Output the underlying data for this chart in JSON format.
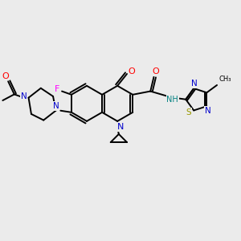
{
  "background_color": "#ebebeb",
  "bond_color": "#000000",
  "atom_colors": {
    "N": "#0000cc",
    "O": "#ff0000",
    "F": "#ff00ff",
    "S": "#999900",
    "NH": "#008080",
    "C": "#000000"
  },
  "figsize": [
    3.0,
    3.0
  ],
  "dpi": 100,
  "xlim": [
    -3.2,
    3.8
  ],
  "ylim": [
    -2.8,
    2.4
  ]
}
